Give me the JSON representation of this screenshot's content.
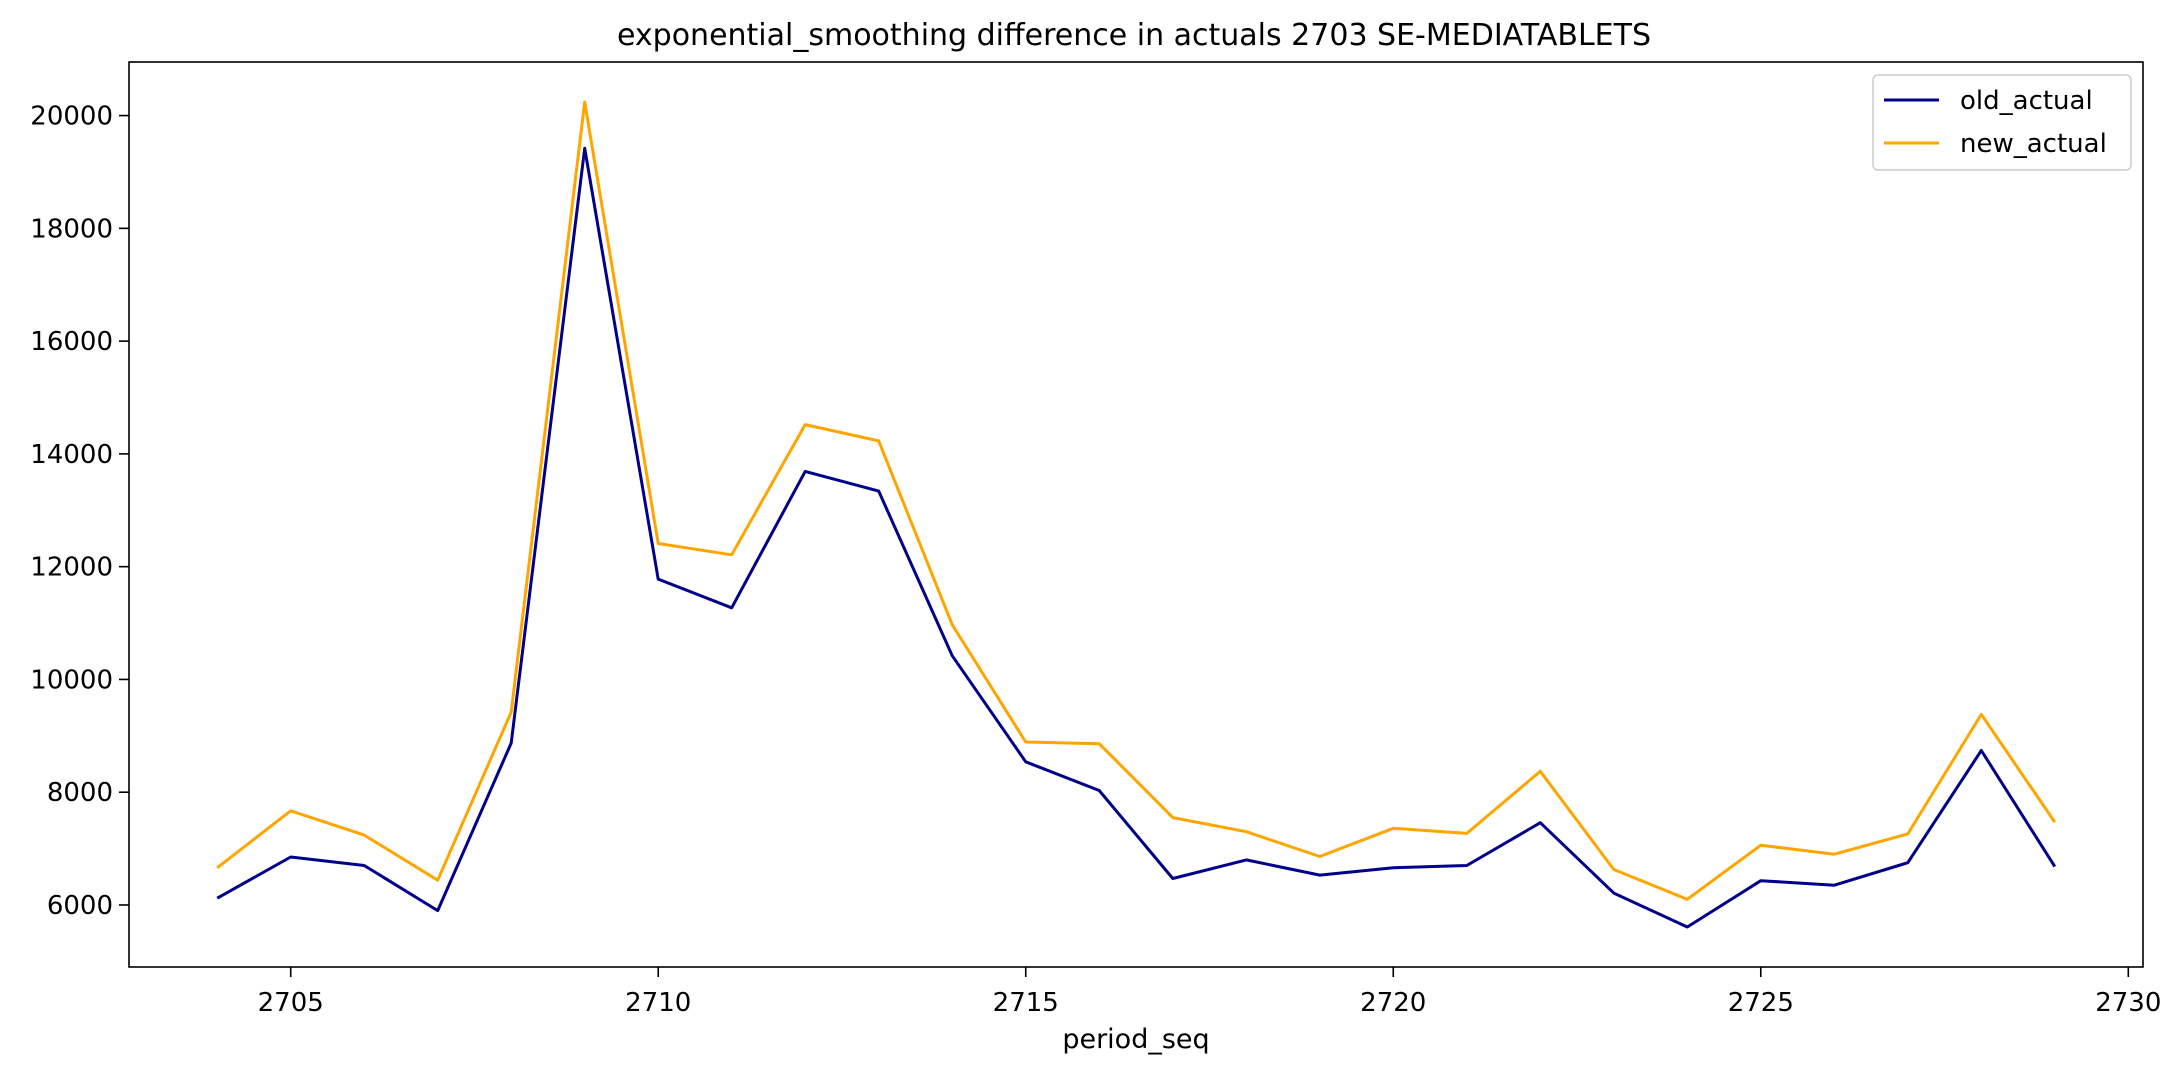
{
  "chart_data": {
    "type": "line",
    "title": "exponential_smoothing difference in actuals 2703 SE-MEDIATABLETS",
    "xlabel": "period_seq",
    "ylabel": "",
    "x": [
      2704,
      2705,
      2706,
      2707,
      2708,
      2709,
      2710,
      2711,
      2712,
      2713,
      2714,
      2715,
      2716,
      2717,
      2718,
      2719,
      2720,
      2721,
      2722,
      2723,
      2724,
      2725,
      2726,
      2727,
      2728,
      2729
    ],
    "xlim": [
      2702.8,
      2730.2
    ],
    "ylim": [
      4900,
      20950
    ],
    "xticks": [
      2705,
      2710,
      2715,
      2720,
      2725,
      2730
    ],
    "yticks": [
      6000,
      8000,
      10000,
      12000,
      14000,
      16000,
      18000,
      20000
    ],
    "grid": false,
    "legend_position": "top-right",
    "series": [
      {
        "name": "old_actual",
        "color": "#00008b",
        "values": [
          6120,
          6850,
          6700,
          5900,
          8870,
          19420,
          11780,
          11270,
          13690,
          13340,
          10420,
          8540,
          8030,
          6470,
          6800,
          6530,
          6660,
          6700,
          7460,
          6210,
          5610,
          6430,
          6350,
          6750,
          8740,
          6680
        ]
      },
      {
        "name": "new_actual",
        "color": "#ffa500",
        "values": [
          6660,
          7670,
          7240,
          6440,
          9420,
          20240,
          12410,
          12210,
          14520,
          14230,
          10970,
          8890,
          8860,
          7550,
          7300,
          6860,
          7360,
          7270,
          8370,
          6630,
          6100,
          7060,
          6900,
          7260,
          9380,
          7470
        ]
      }
    ]
  }
}
